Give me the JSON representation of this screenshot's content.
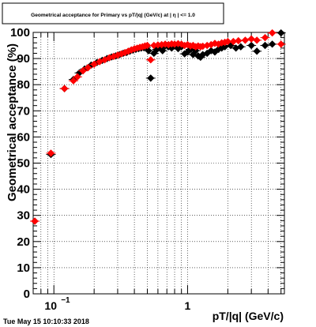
{
  "chart_data": {
    "type": "scatter",
    "title": "Geometrical acceptance for Primary vs pT/|q| (GeV/c) at | η | <= 1.0",
    "xlabel": "pT/|q| (GeV/c)",
    "ylabel": "Geometrical acceptance (%)",
    "x_scale": "log",
    "xlim": [
      0.07,
      5.3
    ],
    "ylim": [
      0,
      100
    ],
    "grid": true,
    "legend": "none",
    "timestamp": "Tue May 15 10:10:33 2018",
    "x_tick_labels": [
      {
        "value": 0.1,
        "base": "10",
        "exp": "−1"
      },
      {
        "value": 1,
        "base": "1",
        "exp": ""
      }
    ],
    "y_ticks": [
      0,
      10,
      20,
      30,
      40,
      50,
      60,
      70,
      80,
      90,
      100
    ],
    "series": [
      {
        "color": "#000000",
        "points": [
          [
            0.072,
            27.8
          ],
          [
            0.095,
            53.3
          ],
          [
            0.12,
            78.5
          ],
          [
            0.14,
            82.0
          ],
          [
            0.155,
            84.5
          ],
          [
            0.17,
            86.0
          ],
          [
            0.19,
            87.5
          ],
          [
            0.21,
            88.5
          ],
          [
            0.23,
            89.3
          ],
          [
            0.25,
            90.0
          ],
          [
            0.27,
            90.6
          ],
          [
            0.29,
            91.0
          ],
          [
            0.31,
            91.5
          ],
          [
            0.33,
            92.0
          ],
          [
            0.35,
            92.3
          ],
          [
            0.37,
            92.8
          ],
          [
            0.39,
            93.2
          ],
          [
            0.41,
            93.5
          ],
          [
            0.43,
            93.8
          ],
          [
            0.45,
            94.0
          ],
          [
            0.47,
            94.2
          ],
          [
            0.49,
            94.3
          ],
          [
            0.51,
            93.0
          ],
          [
            0.53,
            82.5
          ],
          [
            0.56,
            92.0
          ],
          [
            0.59,
            93.5
          ],
          [
            0.62,
            94.5
          ],
          [
            0.65,
            93.0
          ],
          [
            0.68,
            94.8
          ],
          [
            0.72,
            94.5
          ],
          [
            0.76,
            94.0
          ],
          [
            0.8,
            95.0
          ],
          [
            0.85,
            93.8
          ],
          [
            0.9,
            94.5
          ],
          [
            0.95,
            91.8
          ],
          [
            1.0,
            92.5
          ],
          [
            1.05,
            93.5
          ],
          [
            1.1,
            91.5
          ],
          [
            1.15,
            93.0
          ],
          [
            1.2,
            91.0
          ],
          [
            1.25,
            90.5
          ],
          [
            1.3,
            91.5
          ],
          [
            1.4,
            92.0
          ],
          [
            1.5,
            93.0
          ],
          [
            1.6,
            92.5
          ],
          [
            1.7,
            93.5
          ],
          [
            1.8,
            94.0
          ],
          [
            1.9,
            94.5
          ],
          [
            2.1,
            95.0
          ],
          [
            2.3,
            94.0
          ],
          [
            2.5,
            94.5
          ],
          [
            3.0,
            95.0
          ],
          [
            3.3,
            92.8
          ],
          [
            3.8,
            95.0
          ],
          [
            4.3,
            95.5
          ],
          [
            5.0,
            99.8
          ]
        ]
      },
      {
        "color": "#ff0000",
        "points": [
          [
            0.072,
            27.8
          ],
          [
            0.095,
            53.8
          ],
          [
            0.12,
            78.5
          ],
          [
            0.14,
            81.5
          ],
          [
            0.15,
            83.0
          ],
          [
            0.165,
            85.3
          ],
          [
            0.18,
            86.5
          ],
          [
            0.2,
            87.8
          ],
          [
            0.22,
            88.8
          ],
          [
            0.24,
            89.5
          ],
          [
            0.26,
            90.3
          ],
          [
            0.28,
            90.8
          ],
          [
            0.3,
            91.3
          ],
          [
            0.32,
            91.8
          ],
          [
            0.34,
            92.3
          ],
          [
            0.36,
            92.8
          ],
          [
            0.38,
            93.3
          ],
          [
            0.4,
            93.7
          ],
          [
            0.42,
            94.0
          ],
          [
            0.44,
            94.3
          ],
          [
            0.46,
            94.5
          ],
          [
            0.48,
            94.8
          ],
          [
            0.5,
            95.0
          ],
          [
            0.53,
            89.5
          ],
          [
            0.56,
            95.0
          ],
          [
            0.6,
            95.2
          ],
          [
            0.64,
            95.3
          ],
          [
            0.68,
            95.5
          ],
          [
            0.72,
            95.3
          ],
          [
            0.76,
            95.6
          ],
          [
            0.8,
            95.5
          ],
          [
            0.85,
            95.7
          ],
          [
            0.9,
            95.5
          ],
          [
            0.95,
            95.0
          ],
          [
            1.0,
            95.3
          ],
          [
            1.05,
            94.8
          ],
          [
            1.1,
            95.0
          ],
          [
            1.15,
            94.5
          ],
          [
            1.2,
            94.8
          ],
          [
            1.25,
            94.5
          ],
          [
            1.3,
            94.7
          ],
          [
            1.4,
            95.0
          ],
          [
            1.5,
            95.3
          ],
          [
            1.6,
            95.8
          ],
          [
            1.7,
            95.5
          ],
          [
            1.8,
            96.0
          ],
          [
            1.9,
            96.2
          ],
          [
            2.0,
            96.5
          ],
          [
            2.2,
            96.5
          ],
          [
            2.4,
            96.8
          ],
          [
            2.7,
            97.0
          ],
          [
            3.0,
            97.5
          ],
          [
            3.3,
            97.0
          ],
          [
            3.8,
            98.0
          ],
          [
            4.3,
            99.8
          ],
          [
            5.0,
            95.5
          ]
        ]
      }
    ]
  }
}
